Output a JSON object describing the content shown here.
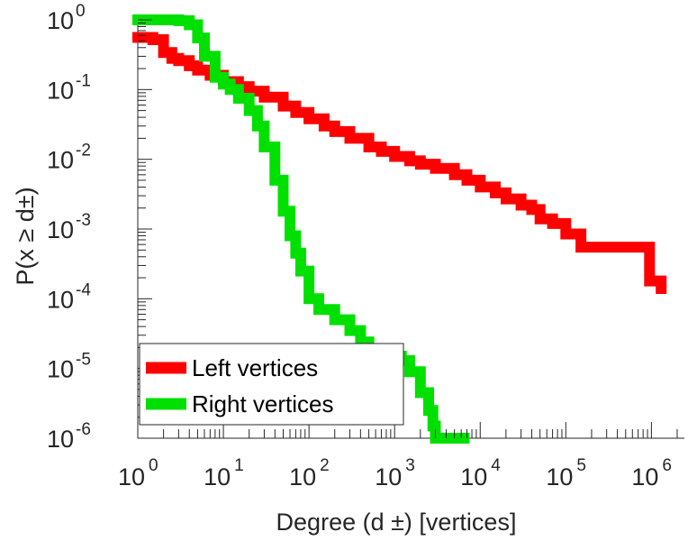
{
  "chart_data": {
    "type": "line",
    "title": "",
    "xlabel": "Degree (d ±) [vertices]",
    "ylabel": "P(x ≥ d±)",
    "x_scale": "log",
    "y_scale": "log",
    "xlim": [
      1,
      2000000
    ],
    "ylim": [
      1e-06,
      1
    ],
    "x_ticks": [
      {
        "value": 1,
        "base": "10",
        "exp": "0"
      },
      {
        "value": 10,
        "base": "10",
        "exp": "1"
      },
      {
        "value": 100,
        "base": "10",
        "exp": "2"
      },
      {
        "value": 1000,
        "base": "10",
        "exp": "3"
      },
      {
        "value": 10000,
        "base": "10",
        "exp": "4"
      },
      {
        "value": 100000,
        "base": "10",
        "exp": "5"
      },
      {
        "value": 1000000,
        "base": "10",
        "exp": "6"
      }
    ],
    "y_ticks": [
      {
        "value": 1,
        "base": "10",
        "exp": "0"
      },
      {
        "value": 0.1,
        "base": "10",
        "exp": "-1"
      },
      {
        "value": 0.01,
        "base": "10",
        "exp": "-2"
      },
      {
        "value": 0.001,
        "base": "10",
        "exp": "-3"
      },
      {
        "value": 0.0001,
        "base": "10",
        "exp": "-4"
      },
      {
        "value": 1e-05,
        "base": "10",
        "exp": "-5"
      },
      {
        "value": 1e-06,
        "base": "10",
        "exp": "-6"
      }
    ],
    "grid": false,
    "legend_position": "bottom-left",
    "series": [
      {
        "name": "Left vertices",
        "color": "#ff0000",
        "points": [
          [
            1,
            0.56
          ],
          [
            1.5,
            0.52
          ],
          [
            2,
            0.34
          ],
          [
            2.5,
            0.28
          ],
          [
            3,
            0.26
          ],
          [
            4,
            0.22
          ],
          [
            5,
            0.19
          ],
          [
            7,
            0.16
          ],
          [
            10,
            0.13
          ],
          [
            15,
            0.11
          ],
          [
            20,
            0.095
          ],
          [
            30,
            0.078
          ],
          [
            50,
            0.058
          ],
          [
            70,
            0.047
          ],
          [
            100,
            0.038
          ],
          [
            150,
            0.03
          ],
          [
            200,
            0.025
          ],
          [
            300,
            0.02
          ],
          [
            500,
            0.015
          ],
          [
            700,
            0.013
          ],
          [
            1000,
            0.011
          ],
          [
            1500,
            0.0095
          ],
          [
            2000,
            0.0085
          ],
          [
            3000,
            0.0074
          ],
          [
            5000,
            0.006
          ],
          [
            7000,
            0.005
          ],
          [
            10000,
            0.004
          ],
          [
            15000,
            0.0033
          ],
          [
            20000,
            0.0027
          ],
          [
            30000,
            0.0022
          ],
          [
            40000,
            0.0019
          ],
          [
            50000,
            0.0014
          ],
          [
            70000,
            0.0012
          ],
          [
            100000,
            0.00085
          ],
          [
            150000,
            0.00055
          ],
          [
            200000,
            0.00055
          ],
          [
            300000,
            0.00055
          ],
          [
            500000,
            0.00055
          ],
          [
            800000,
            0.00055
          ],
          [
            900000,
            0.00055
          ],
          [
            950000,
            0.00018
          ],
          [
            1300000,
            0.00014
          ]
        ]
      },
      {
        "name": "Right vertices",
        "color": "#00e000",
        "points": [
          [
            1,
            1.0
          ],
          [
            2,
            1.0
          ],
          [
            3,
            0.97
          ],
          [
            4,
            0.85
          ],
          [
            5,
            0.55
          ],
          [
            6,
            0.3
          ],
          [
            8,
            0.15
          ],
          [
            10,
            0.12
          ],
          [
            12,
            0.1
          ],
          [
            15,
            0.075
          ],
          [
            20,
            0.05
          ],
          [
            25,
            0.03
          ],
          [
            30,
            0.015
          ],
          [
            40,
            0.005
          ],
          [
            50,
            0.0018
          ],
          [
            60,
            0.0008
          ],
          [
            70,
            0.00045
          ],
          [
            80,
            0.00025
          ],
          [
            100,
            0.0001
          ],
          [
            130,
            7e-05
          ],
          [
            200,
            5e-05
          ],
          [
            300,
            3.5e-05
          ],
          [
            400,
            2.4e-05
          ],
          [
            500,
            1.7e-05
          ],
          [
            700,
            1.6e-05
          ],
          [
            1000,
            1.5e-05
          ],
          [
            1200,
            1.3e-05
          ],
          [
            1500,
            9e-06
          ],
          [
            2000,
            4.5e-06
          ],
          [
            2500,
            2.5e-06
          ],
          [
            2800,
            1.5e-06
          ],
          [
            3000,
            1e-06
          ],
          [
            6500,
            1e-06
          ]
        ]
      }
    ]
  }
}
